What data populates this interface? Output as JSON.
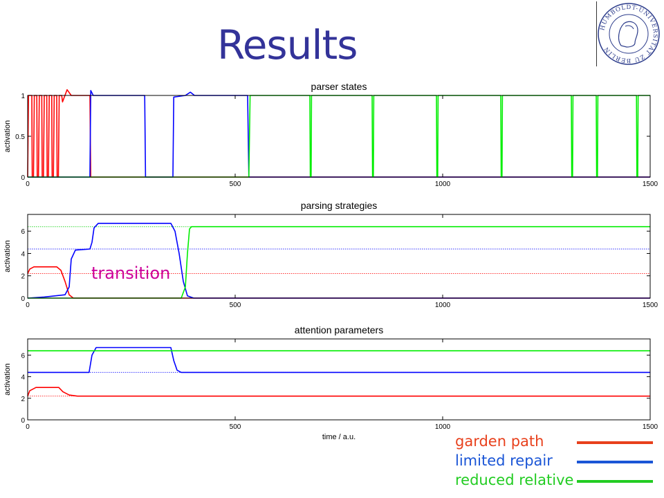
{
  "slide": {
    "title": "Results",
    "annotation": "transition",
    "logo_text": "HUMBOLDT-UNIVERSITÄT ZU BERLIN"
  },
  "legend": [
    {
      "label": "garden path",
      "color": "#e8401c"
    },
    {
      "label": "limited repair",
      "color": "#1a55d6"
    },
    {
      "label": "reduced relative",
      "color": "#22cc22"
    }
  ],
  "chart_data": [
    {
      "type": "line",
      "title": "parser states",
      "xlabel": "",
      "ylabel": "activation",
      "xlim": [
        0,
        1500
      ],
      "ylim": [
        0,
        1
      ],
      "xticks": [
        0,
        500,
        1000,
        1500
      ],
      "yticks": [
        0,
        0.5,
        1
      ],
      "series": [
        {
          "color": "#ff0000",
          "points": [
            [
              0,
              0
            ],
            [
              2,
              1
            ],
            [
              10,
              1
            ],
            [
              11,
              0
            ],
            [
              14,
              0
            ],
            [
              16,
              1
            ],
            [
              22,
              1
            ],
            [
              23,
              0
            ],
            [
              26,
              0
            ],
            [
              28,
              1
            ],
            [
              34,
              1
            ],
            [
              35,
              0
            ],
            [
              38,
              0
            ],
            [
              40,
              1
            ],
            [
              46,
              1
            ],
            [
              47,
              0
            ],
            [
              50,
              0
            ],
            [
              52,
              1
            ],
            [
              58,
              1
            ],
            [
              59,
              0
            ],
            [
              62,
              0
            ],
            [
              64,
              1
            ],
            [
              70,
              1
            ],
            [
              71,
              0
            ],
            [
              74,
              0
            ],
            [
              76,
              1
            ],
            [
              82,
              1
            ],
            [
              84,
              0.92
            ],
            [
              95,
              1.07
            ],
            [
              105,
              1
            ],
            [
              150,
              1
            ],
            [
              152,
              0
            ],
            [
              1500,
              0
            ]
          ]
        },
        {
          "color": "#0000ff",
          "points": [
            [
              0,
              0
            ],
            [
              150,
              0
            ],
            [
              152,
              1.06
            ],
            [
              158,
              1
            ],
            [
              282,
              1
            ],
            [
              284,
              0
            ],
            [
              350,
              0
            ],
            [
              352,
              0.98
            ],
            [
              380,
              1
            ],
            [
              392,
              1.04
            ],
            [
              402,
              1
            ],
            [
              530,
              1
            ],
            [
              533,
              0
            ],
            [
              1500,
              0
            ]
          ]
        },
        {
          "color": "#00ee00",
          "points": [
            [
              0,
              0
            ],
            [
              533,
              0
            ],
            [
              536,
              1
            ],
            [
              680,
              1
            ],
            [
              681,
              0
            ],
            [
              683,
              0
            ],
            [
              684,
              1
            ],
            [
              830,
              1
            ],
            [
              831,
              0
            ],
            [
              833,
              0
            ],
            [
              834,
              1
            ],
            [
              985,
              1
            ],
            [
              986,
              0
            ],
            [
              988,
              0
            ],
            [
              989,
              1
            ],
            [
              1140,
              1
            ],
            [
              1141,
              0
            ],
            [
              1143,
              0
            ],
            [
              1144,
              1
            ],
            [
              1310,
              1
            ],
            [
              1311,
              0
            ],
            [
              1313,
              0
            ],
            [
              1314,
              1
            ],
            [
              1370,
              1
            ],
            [
              1371,
              0
            ],
            [
              1373,
              0
            ],
            [
              1374,
              1
            ],
            [
              1467,
              1
            ],
            [
              1468,
              0
            ],
            [
              1470,
              0
            ],
            [
              1471,
              1
            ],
            [
              1500,
              1
            ]
          ]
        }
      ]
    },
    {
      "type": "line",
      "title": "parsing strategies",
      "xlabel": "",
      "ylabel": "activation",
      "xlim": [
        0,
        1500
      ],
      "ylim": [
        0,
        7.5
      ],
      "xticks": [
        0,
        500,
        1000,
        1500
      ],
      "yticks": [
        0,
        2,
        4,
        6
      ],
      "reference_lines": [
        {
          "y": 2.2,
          "color": "#ff0000"
        },
        {
          "y": 4.4,
          "color": "#0000ff"
        },
        {
          "y": 6.4,
          "color": "#00cc00"
        }
      ],
      "series": [
        {
          "color": "#ff0000",
          "points": [
            [
              0,
              2.2
            ],
            [
              5,
              2.6
            ],
            [
              15,
              2.8
            ],
            [
              70,
              2.8
            ],
            [
              80,
              2.5
            ],
            [
              90,
              1.5
            ],
            [
              100,
              0.3
            ],
            [
              110,
              0
            ],
            [
              1500,
              0
            ]
          ]
        },
        {
          "color": "#0000ff",
          "points": [
            [
              0,
              0
            ],
            [
              40,
              0.1
            ],
            [
              90,
              0.3
            ],
            [
              100,
              1
            ],
            [
              105,
              3.5
            ],
            [
              115,
              4.3
            ],
            [
              150,
              4.4
            ],
            [
              155,
              5
            ],
            [
              160,
              6.3
            ],
            [
              170,
              6.7
            ],
            [
              345,
              6.7
            ],
            [
              355,
              6
            ],
            [
              365,
              4
            ],
            [
              375,
              1.5
            ],
            [
              385,
              0.2
            ],
            [
              400,
              0
            ],
            [
              1500,
              0
            ]
          ]
        },
        {
          "color": "#00ee00",
          "points": [
            [
              0,
              0
            ],
            [
              370,
              0
            ],
            [
              380,
              1
            ],
            [
              385,
              4
            ],
            [
              390,
              6.2
            ],
            [
              395,
              6.4
            ],
            [
              1500,
              6.4
            ]
          ]
        }
      ]
    },
    {
      "type": "line",
      "title": "attention parameters",
      "xlabel": "time / a.u.",
      "ylabel": "activation",
      "xlim": [
        0,
        1500
      ],
      "ylim": [
        0,
        7.5
      ],
      "xticks": [
        0,
        500,
        1000,
        1500
      ],
      "yticks": [
        0,
        2,
        4,
        6
      ],
      "reference_lines": [
        {
          "y": 2.2,
          "color": "#ff0000"
        },
        {
          "y": 4.4,
          "color": "#0000ff"
        },
        {
          "y": 6.4,
          "color": "#00cc00"
        }
      ],
      "series": [
        {
          "color": "#ff0000",
          "points": [
            [
              0,
              2.2
            ],
            [
              5,
              2.7
            ],
            [
              20,
              3.0
            ],
            [
              75,
              3.0
            ],
            [
              85,
              2.6
            ],
            [
              100,
              2.3
            ],
            [
              120,
              2.2
            ],
            [
              1500,
              2.2
            ]
          ]
        },
        {
          "color": "#0000ff",
          "points": [
            [
              0,
              4.4
            ],
            [
              148,
              4.4
            ],
            [
              155,
              6
            ],
            [
              165,
              6.7
            ],
            [
              345,
              6.7
            ],
            [
              352,
              5.5
            ],
            [
              360,
              4.6
            ],
            [
              370,
              4.4
            ],
            [
              1500,
              4.4
            ]
          ]
        },
        {
          "color": "#00ee00",
          "points": [
            [
              0,
              6.4
            ],
            [
              1500,
              6.4
            ]
          ]
        }
      ]
    }
  ]
}
